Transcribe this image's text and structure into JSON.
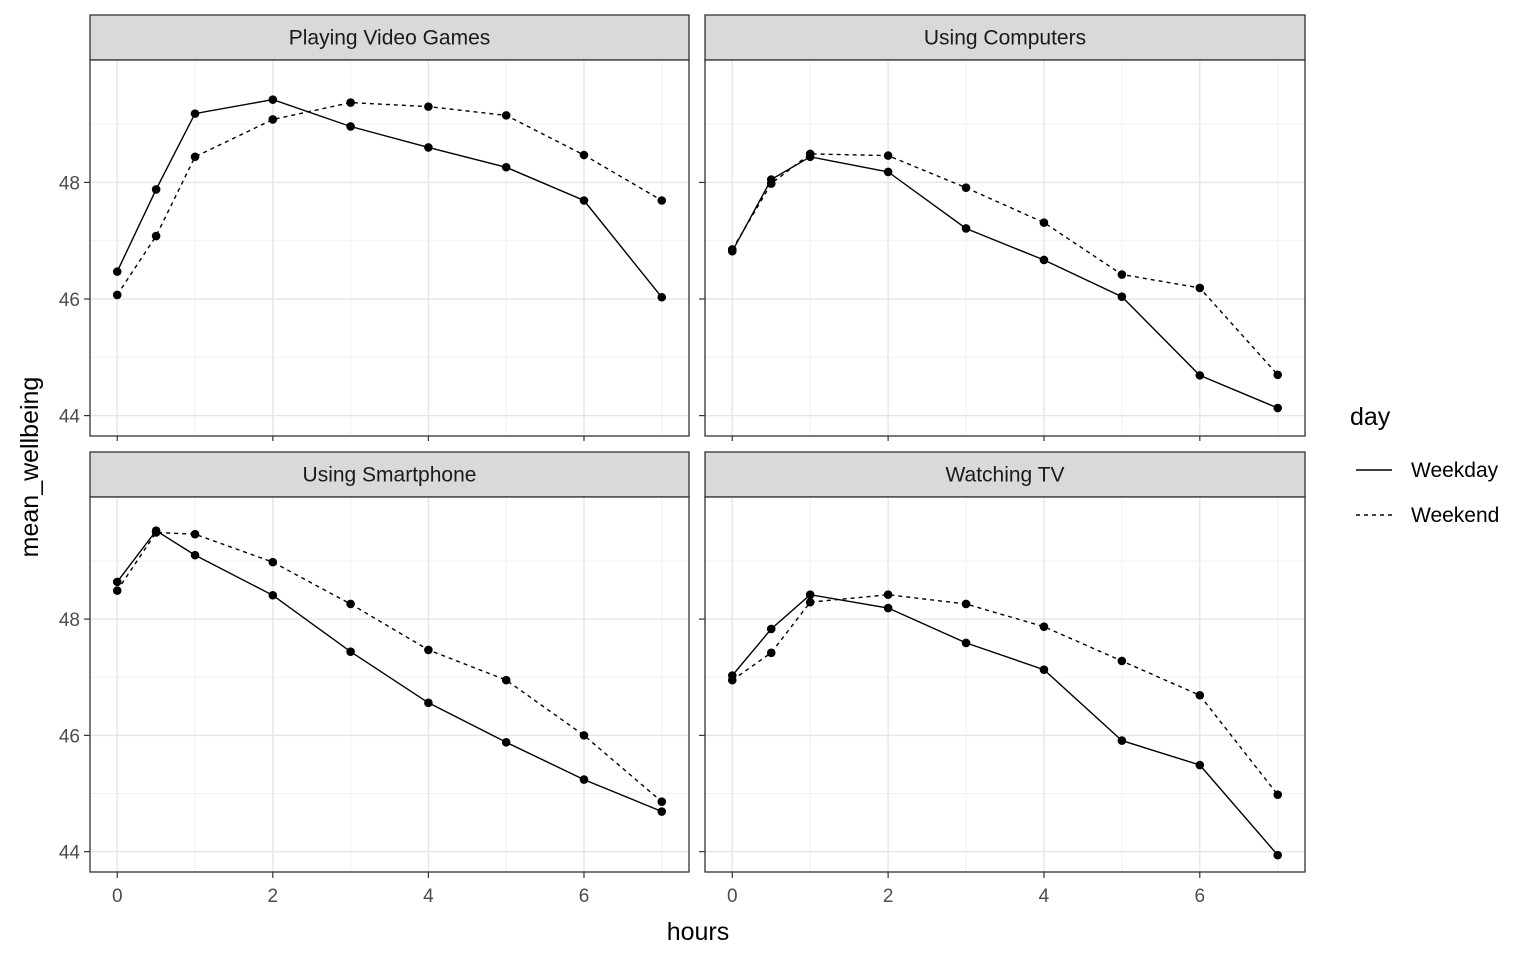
{
  "chart_data": {
    "type": "line",
    "xlabel": "hours",
    "ylabel": "mean_wellbeing",
    "xlim": [
      -0.35,
      7.35
    ],
    "ylim": [
      43.65,
      50.1
    ],
    "x_ticks": [
      0,
      2,
      4,
      6
    ],
    "x_tick_labels": [
      "0",
      "2",
      "4",
      "6"
    ],
    "y_ticks": [
      44,
      46,
      48
    ],
    "y_tick_labels": [
      "44",
      "46",
      "48"
    ],
    "grid": true,
    "legend": {
      "title": "day",
      "position": "right",
      "entries": [
        {
          "label": "Weekday",
          "linetype": "solid"
        },
        {
          "label": "Weekend",
          "linetype": "dashed"
        }
      ]
    },
    "x": [
      0,
      0.5,
      1,
      2,
      3,
      4,
      5,
      6,
      7
    ],
    "panels": [
      {
        "title": "Playing Video Games",
        "series": [
          {
            "name": "Weekday",
            "values": [
              46.47,
              47.88,
              49.18,
              49.42,
              48.96,
              48.6,
              48.26,
              47.69,
              46.03
            ]
          },
          {
            "name": "Weekend",
            "values": [
              46.07,
              47.08,
              48.44,
              49.08,
              49.37,
              49.3,
              49.15,
              48.47,
              47.69
            ]
          }
        ]
      },
      {
        "title": "Using Computers",
        "series": [
          {
            "name": "Weekday",
            "values": [
              46.82,
              48.05,
              48.44,
              48.18,
              47.21,
              46.67,
              46.04,
              44.69,
              44.13
            ]
          },
          {
            "name": "Weekend",
            "values": [
              46.85,
              47.98,
              48.49,
              48.46,
              47.91,
              47.31,
              46.42,
              46.19,
              44.7
            ]
          }
        ]
      },
      {
        "title": "Using Smartphone",
        "series": [
          {
            "name": "Weekday",
            "values": [
              48.64,
              49.52,
              49.1,
              48.41,
              47.44,
              46.56,
              45.88,
              45.24,
              44.69
            ]
          },
          {
            "name": "Weekend",
            "values": [
              48.49,
              49.49,
              49.46,
              48.98,
              48.26,
              47.47,
              46.95,
              46.0,
              44.86
            ]
          }
        ]
      },
      {
        "title": "Watching TV",
        "series": [
          {
            "name": "Weekday",
            "values": [
              47.03,
              47.83,
              48.42,
              48.19,
              47.59,
              47.13,
              45.91,
              45.49,
              43.94
            ]
          },
          {
            "name": "Weekend",
            "values": [
              46.95,
              47.42,
              48.29,
              48.42,
              48.26,
              47.87,
              47.28,
              46.69,
              44.98
            ]
          }
        ]
      }
    ]
  }
}
